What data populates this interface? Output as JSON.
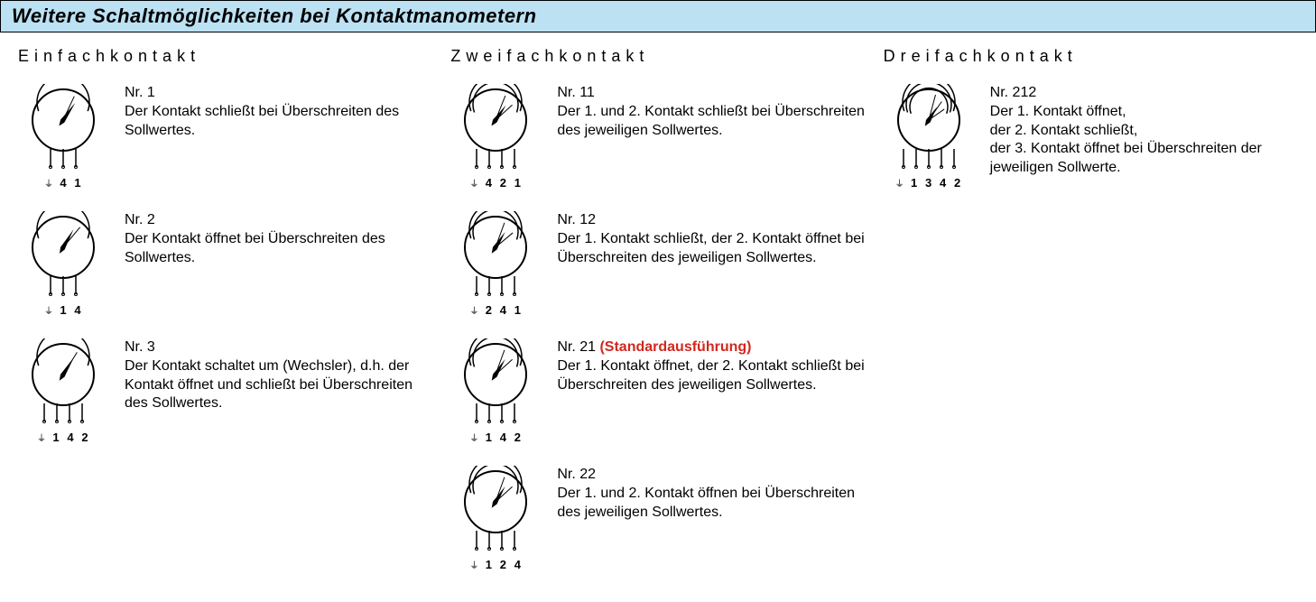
{
  "header": "Weitere Schaltmöglichkeiten bei Kontaktmanometern",
  "style": {
    "header_bg": "#bbe1f3",
    "header_border": "#000000",
    "highlight_color": "#d1281f",
    "gauge_stroke": "#000000",
    "gauge_stroke_width": 2,
    "dial_radius": 34,
    "pointer_fill": "#000000"
  },
  "columns": [
    {
      "title": "Einfachkontakt",
      "entries": [
        {
          "nr": "Nr. 1",
          "highlight": "",
          "text": "Der Kontakt schließt bei Über­schreiten des Sollwertes.",
          "gauge": {
            "contacts": 1,
            "pointer_deg": -55,
            "cont_degs": [
              -65
            ]
          },
          "terminals": [
            "⏚",
            "4",
            "1"
          ]
        },
        {
          "nr": "Nr. 2",
          "highlight": "",
          "text": "Der Kontakt öffnet bei Überschrei­ten des Sollwertes.",
          "gauge": {
            "contacts": 1,
            "pointer_deg": -60,
            "cont_degs": [
              -50
            ]
          },
          "terminals": [
            "⏚",
            "1",
            "4"
          ]
        },
        {
          "nr": "Nr. 3",
          "highlight": "",
          "text": "Der Kontakt schaltet um (Wechs­ler), d.h. der Kontakt öffnet und schließt bei Überschreiten des Sollwertes.",
          "gauge": {
            "contacts": 1,
            "pointer_deg": -58,
            "cont_degs": [
              -58
            ],
            "wechsler": true
          },
          "terminals": [
            "⏚",
            "1",
            "4",
            "2"
          ]
        }
      ]
    },
    {
      "title": "Zweifachkontakt",
      "entries": [
        {
          "nr": "Nr. 11",
          "highlight": "",
          "text": "Der 1. und 2. Kontakt schließt bei Überschreiten des jeweiligen Sollwertes.",
          "gauge": {
            "contacts": 2,
            "pointer_deg": -55,
            "cont_degs": [
              -68,
              -42
            ]
          },
          "terminals": [
            "⏚",
            "4",
            "2",
            "1"
          ]
        },
        {
          "nr": "Nr. 12",
          "highlight": "",
          "text": "Der 1. Kontakt schließt, der 2. Kontakt öffnet bei Überschreiten des jeweiligen Sollwertes.",
          "gauge": {
            "contacts": 2,
            "pointer_deg": -58,
            "cont_degs": [
              -70,
              -40
            ]
          },
          "terminals": [
            "⏚",
            "2",
            "4",
            "1"
          ]
        },
        {
          "nr": "Nr. 21",
          "highlight": "(Standardausführung)",
          "text": "Der 1. Kontakt öffnet, der 2. Kontakt schließt bei Überschreiten des jeweiligen Sollwertes.",
          "gauge": {
            "contacts": 2,
            "pointer_deg": -58,
            "cont_degs": [
              -70,
              -42
            ]
          },
          "terminals": [
            "⏚",
            "1",
            "4",
            "2"
          ]
        },
        {
          "nr": "Nr. 22",
          "highlight": "",
          "text": "Der 1. und 2. Kontakt öffnen bei Überschreiten des jeweiligen Sollwertes.",
          "gauge": {
            "contacts": 2,
            "pointer_deg": -58,
            "cont_degs": [
              -70,
              -42
            ]
          },
          "terminals": [
            "⏚",
            "1",
            "2",
            "4"
          ]
        }
      ]
    },
    {
      "title": "Dreifachkontakt",
      "entries": [
        {
          "nr": "Nr. 212",
          "highlight": "",
          "text": "Der 1. Kontakt öffnet,\nder 2. Kontakt schließt,\nder 3. Kontakt öffnet bei Über­schreiten der jeweiligen Sollwerte.",
          "gauge": {
            "contacts": 3,
            "pointer_deg": -58,
            "cont_degs": [
              -75,
              -55,
              -35
            ]
          },
          "terminals": [
            "⏚",
            "1",
            "3",
            "4",
            "2"
          ]
        }
      ]
    }
  ]
}
